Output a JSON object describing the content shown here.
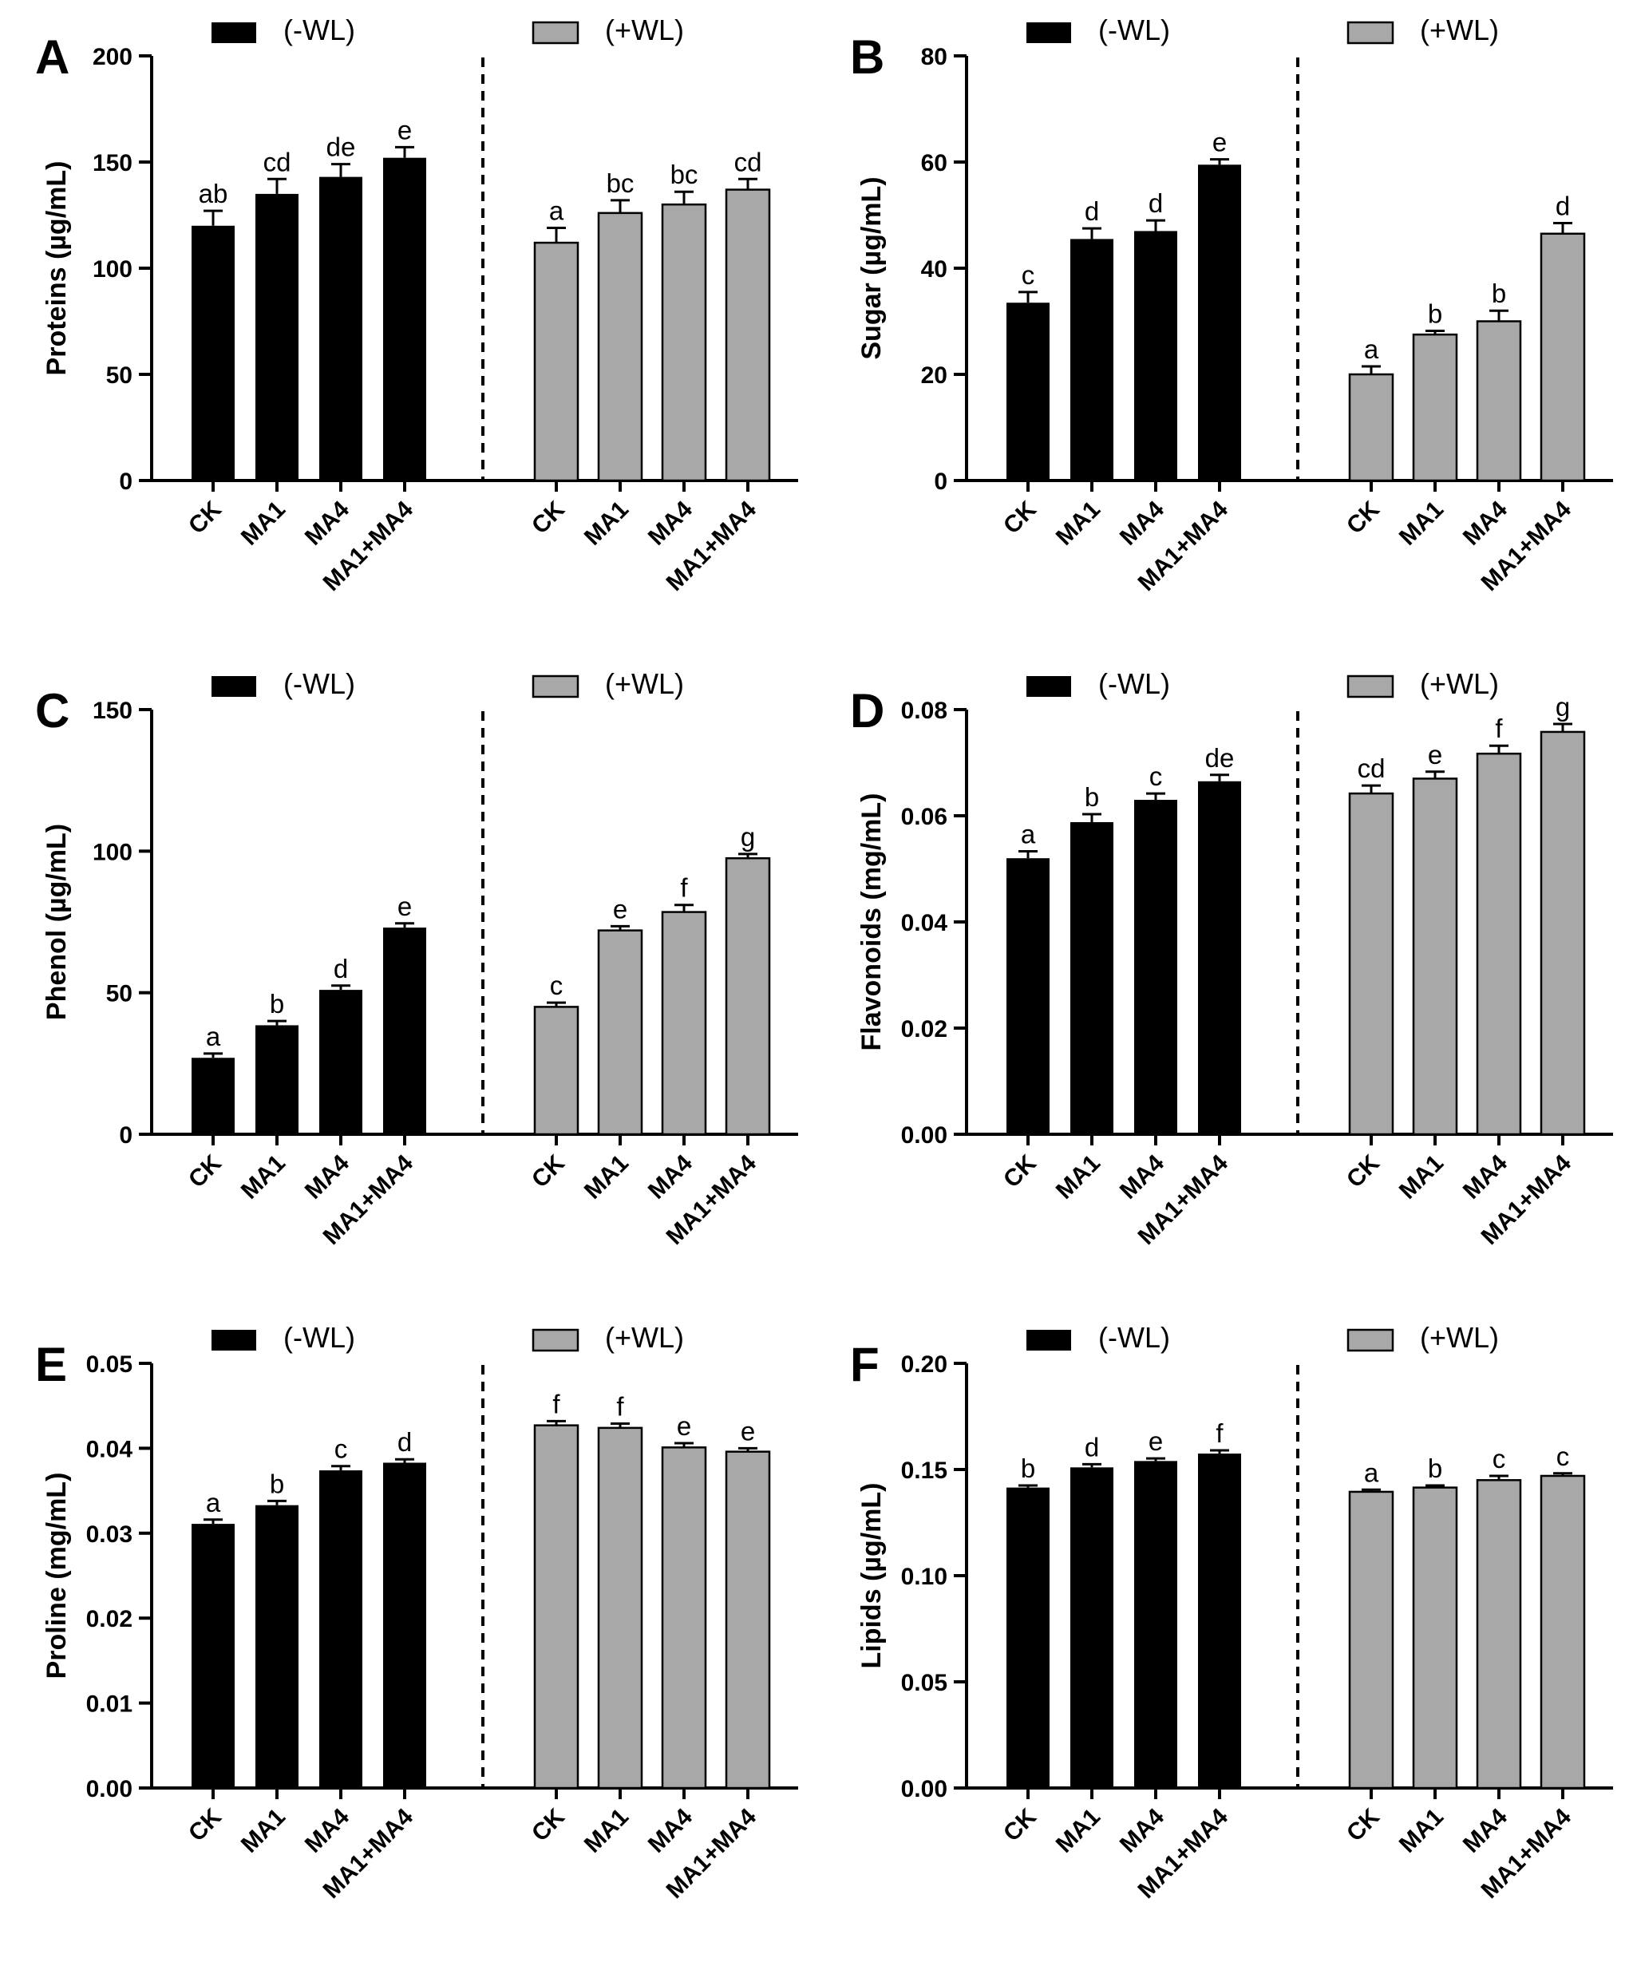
{
  "legend": {
    "minus": "(-WL)",
    "plus": "(+WL)"
  },
  "categories": [
    "CK",
    "MA1",
    "MA4",
    "MA1+MA4"
  ],
  "chart_data": [
    {
      "panel": "A",
      "type": "bar",
      "ylabel": "Proteins (µg/mL)",
      "ylim": [
        0,
        200
      ],
      "ticks": [
        "0",
        "50",
        "100",
        "150",
        "200"
      ],
      "categories": [
        "CK",
        "MA1",
        "MA4",
        "MA1+MA4"
      ],
      "series": [
        {
          "name": "(-WL)",
          "values": [
            120,
            135,
            143,
            152
          ],
          "errors": [
            7,
            7,
            6,
            5
          ],
          "labels": [
            "ab",
            "cd",
            "de",
            "e"
          ]
        },
        {
          "name": "(+WL)",
          "values": [
            112,
            126,
            130,
            137
          ],
          "errors": [
            7,
            6,
            6,
            5
          ],
          "labels": [
            "a",
            "bc",
            "bc",
            "cd"
          ]
        }
      ]
    },
    {
      "panel": "B",
      "type": "bar",
      "ylabel": "Sugar (µg/mL)",
      "ylim": [
        0,
        80
      ],
      "ticks": [
        "0",
        "20",
        "40",
        "60",
        "80"
      ],
      "categories": [
        "CK",
        "MA1",
        "MA4",
        "MA1+MA4"
      ],
      "series": [
        {
          "name": "(-WL)",
          "values": [
            33.5,
            45.5,
            47,
            59.5
          ],
          "errors": [
            2,
            2,
            2,
            1
          ],
          "labels": [
            "c",
            "d",
            "d",
            "e"
          ]
        },
        {
          "name": "(+WL)",
          "values": [
            20,
            27.5,
            30,
            46.5
          ],
          "errors": [
            1.5,
            0.7,
            2,
            2
          ],
          "labels": [
            "a",
            "b",
            "b",
            "d"
          ]
        }
      ]
    },
    {
      "panel": "C",
      "type": "bar",
      "ylabel": "Phenol (µg/mL)",
      "ylim": [
        0,
        150
      ],
      "ticks": [
        "0",
        "50",
        "100",
        "150"
      ],
      "categories": [
        "CK",
        "MA1",
        "MA4",
        "MA1+MA4"
      ],
      "series": [
        {
          "name": "(-WL)",
          "values": [
            27,
            38.5,
            51,
            73
          ],
          "errors": [
            1.5,
            1.5,
            1.5,
            1.5
          ],
          "labels": [
            "a",
            "b",
            "d",
            "e"
          ]
        },
        {
          "name": "(+WL)",
          "values": [
            45,
            72,
            78.5,
            97.5
          ],
          "errors": [
            1.5,
            1.5,
            2.5,
            1.5
          ],
          "labels": [
            "c",
            "e",
            "f",
            "g"
          ]
        }
      ]
    },
    {
      "panel": "D",
      "type": "bar",
      "ylabel": "Flavonoids (mg/mL)",
      "ylim": [
        0,
        0.08
      ],
      "ticks": [
        "0.00",
        "0.02",
        "0.04",
        "0.06",
        "0.08"
      ],
      "categories": [
        "CK",
        "MA1",
        "MA4",
        "MA1+MA4"
      ],
      "series": [
        {
          "name": "(-WL)",
          "values": [
            0.052,
            0.0588,
            0.063,
            0.0665
          ],
          "errors": [
            0.0013,
            0.0015,
            0.0012,
            0.0012
          ],
          "labels": [
            "a",
            "b",
            "c",
            "de"
          ]
        },
        {
          "name": "(+WL)",
          "values": [
            0.0642,
            0.067,
            0.0717,
            0.0758
          ],
          "errors": [
            0.0015,
            0.0013,
            0.0015,
            0.0015
          ],
          "labels": [
            "cd",
            "e",
            "f",
            "g"
          ]
        }
      ]
    },
    {
      "panel": "E",
      "type": "bar",
      "ylabel": "Proline (mg/mL)",
      "ylim": [
        0,
        0.05
      ],
      "ticks": [
        "0.00",
        "0.01",
        "0.02",
        "0.03",
        "0.04",
        "0.05"
      ],
      "categories": [
        "CK",
        "MA1",
        "MA4",
        "MA1+MA4"
      ],
      "series": [
        {
          "name": "(-WL)",
          "values": [
            0.0311,
            0.0333,
            0.0374,
            0.0383
          ],
          "errors": [
            0.0005,
            0.0005,
            0.0005,
            0.0004
          ],
          "labels": [
            "a",
            "b",
            "c",
            "d"
          ]
        },
        {
          "name": "(+WL)",
          "values": [
            0.0427,
            0.0424,
            0.0401,
            0.0396
          ],
          "errors": [
            0.0005,
            0.0005,
            0.0005,
            0.0004
          ],
          "labels": [
            "f",
            "f",
            "e",
            "e"
          ]
        }
      ]
    },
    {
      "panel": "F",
      "type": "bar",
      "ylabel": "Lipids (µg/mL)",
      "ylim": [
        0,
        0.2
      ],
      "ticks": [
        "0.00",
        "0.05",
        "0.10",
        "0.15",
        "0.20"
      ],
      "categories": [
        "CK",
        "MA1",
        "MA4",
        "MA1+MA4"
      ],
      "series": [
        {
          "name": "(-WL)",
          "values": [
            0.1415,
            0.151,
            0.154,
            0.1575
          ],
          "errors": [
            0.001,
            0.0015,
            0.0012,
            0.0015
          ],
          "labels": [
            "b",
            "d",
            "e",
            "f"
          ]
        },
        {
          "name": "(+WL)",
          "values": [
            0.1395,
            0.1415,
            0.145,
            0.147
          ],
          "errors": [
            0.001,
            0.001,
            0.002,
            0.0012
          ],
          "labels": [
            "a",
            "b",
            "c",
            "c"
          ]
        }
      ]
    }
  ]
}
